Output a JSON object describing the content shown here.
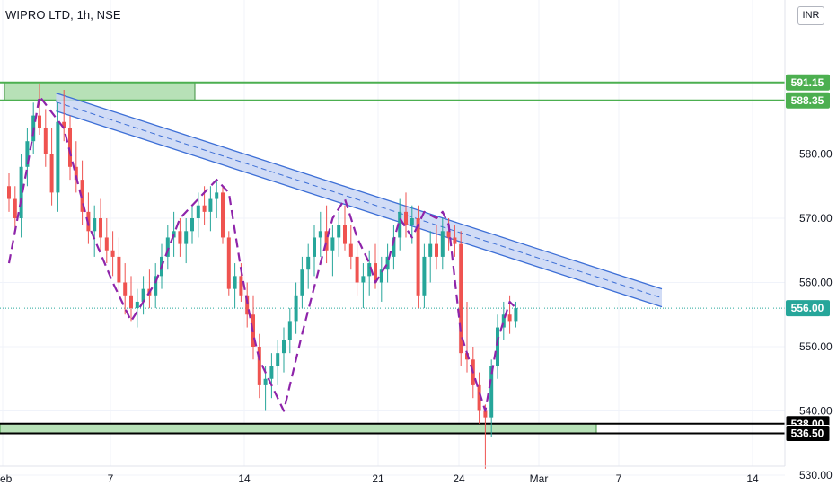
{
  "header": {
    "symbol_title": "WIPRO LTD, 1h, NSE",
    "currency": "INR"
  },
  "colors": {
    "up": "#26a69a",
    "down": "#ef5350",
    "zone_fill": "#b7e1b7",
    "zone_line": "#4caf50",
    "channel_fill": "#c9d6f5",
    "channel_line": "#3d6fd6",
    "path_line": "#8e24aa",
    "last_price": "#26a69a",
    "support_tag": "#000000"
  },
  "chart_data": {
    "type": "candlestick",
    "y_ticks": [
      530,
      540,
      550,
      560,
      570,
      580
    ],
    "ylim": [
      527,
      597
    ],
    "x_ticks": [
      "Feb",
      "7",
      "14",
      "21",
      "24",
      "Mar",
      "7",
      "14"
    ],
    "price_tags": [
      {
        "label": "591.15",
        "style": "resistance"
      },
      {
        "label": "588.35",
        "style": "resistance"
      },
      {
        "label": "556.00",
        "style": "last"
      },
      {
        "label": "538.00",
        "style": "support"
      },
      {
        "label": "536.50",
        "style": "support"
      }
    ],
    "zones": [
      {
        "name": "resistance",
        "high": 591.15,
        "low": 588.35
      },
      {
        "name": "support",
        "high": 538.0,
        "low": 536.5
      }
    ],
    "last_price": 556.0,
    "channel": {
      "from_bar": 8,
      "to_bar": 125,
      "from_high": 589.5,
      "to_high": 559.0,
      "width": 2.8
    },
    "candles": [
      [
        0,
        575,
        577,
        571,
        573
      ],
      [
        1,
        573,
        575,
        568,
        570
      ],
      [
        2,
        570,
        580,
        567,
        578
      ],
      [
        3,
        578,
        584,
        575,
        582
      ],
      [
        4,
        582,
        588,
        580,
        586
      ],
      [
        5,
        586,
        591,
        583,
        584
      ],
      [
        6,
        584,
        587,
        578,
        580
      ],
      [
        7,
        580,
        584,
        572,
        574
      ],
      [
        8,
        574,
        588,
        571,
        585
      ],
      [
        9,
        585,
        590,
        582,
        584
      ],
      [
        10,
        584,
        586,
        576,
        578
      ],
      [
        11,
        578,
        582,
        574,
        576
      ],
      [
        12,
        576,
        579,
        569,
        571
      ],
      [
        13,
        571,
        574,
        566,
        568
      ],
      [
        14,
        568,
        572,
        564,
        570
      ],
      [
        15,
        570,
        573,
        565,
        567
      ],
      [
        16,
        567,
        570,
        563,
        565
      ],
      [
        17,
        565,
        568,
        561,
        564
      ],
      [
        18,
        564,
        567,
        558,
        560
      ],
      [
        19,
        560,
        563,
        555,
        558
      ],
      [
        20,
        558,
        561,
        554,
        556
      ],
      [
        21,
        556,
        559,
        553,
        557
      ],
      [
        22,
        557,
        561,
        555,
        559
      ],
      [
        23,
        559,
        562,
        556,
        558
      ],
      [
        24,
        558,
        563,
        556,
        561
      ],
      [
        25,
        561,
        566,
        559,
        564
      ],
      [
        26,
        564,
        569,
        562,
        567
      ],
      [
        27,
        567,
        571,
        564,
        568
      ],
      [
        28,
        568,
        570,
        564,
        566
      ],
      [
        29,
        566,
        570,
        563,
        568
      ],
      [
        30,
        568,
        572,
        566,
        570
      ],
      [
        31,
        570,
        574,
        567,
        572
      ],
      [
        32,
        572,
        575,
        569,
        571
      ],
      [
        33,
        571,
        575,
        568,
        573
      ],
      [
        34,
        573,
        576,
        570,
        574
      ],
      [
        35,
        574,
        575,
        566,
        567
      ],
      [
        36,
        567,
        568,
        558,
        559
      ],
      [
        37,
        559,
        563,
        556,
        561
      ],
      [
        38,
        561,
        563,
        557,
        558
      ],
      [
        39,
        558,
        560,
        553,
        555
      ],
      [
        40,
        555,
        558,
        548,
        550
      ],
      [
        41,
        550,
        552,
        542,
        544
      ],
      [
        42,
        544,
        547,
        540,
        545
      ],
      [
        43,
        545,
        549,
        542,
        547
      ],
      [
        44,
        547,
        551,
        544,
        549
      ],
      [
        45,
        549,
        553,
        546,
        551
      ],
      [
        46,
        551,
        556,
        549,
        554
      ],
      [
        47,
        554,
        560,
        552,
        558
      ],
      [
        48,
        558,
        564,
        556,
        562
      ],
      [
        49,
        562,
        566,
        559,
        564
      ],
      [
        50,
        564,
        569,
        561,
        567
      ],
      [
        51,
        567,
        571,
        564,
        568
      ],
      [
        52,
        568,
        572,
        563,
        565
      ],
      [
        53,
        565,
        569,
        561,
        567
      ],
      [
        54,
        567,
        571,
        564,
        569
      ],
      [
        55,
        569,
        572,
        565,
        566
      ],
      [
        56,
        566,
        569,
        562,
        564
      ],
      [
        57,
        564,
        566,
        558,
        560
      ],
      [
        58,
        560,
        563,
        556,
        561
      ],
      [
        59,
        561,
        565,
        558,
        563
      ],
      [
        60,
        563,
        566,
        559,
        560
      ],
      [
        61,
        560,
        564,
        557,
        562
      ],
      [
        62,
        562,
        566,
        560,
        564
      ],
      [
        63,
        564,
        569,
        562,
        567
      ],
      [
        64,
        567,
        573,
        565,
        571
      ],
      [
        65,
        571,
        574,
        567,
        569
      ],
      [
        66,
        569,
        572,
        566,
        570
      ],
      [
        67,
        570,
        572,
        556,
        558
      ],
      [
        68,
        558,
        566,
        556,
        564
      ],
      [
        69,
        564,
        568,
        560,
        566
      ],
      [
        70,
        566,
        569,
        562,
        564
      ],
      [
        71,
        564,
        570,
        562,
        568
      ],
      [
        72,
        568,
        570,
        565,
        567
      ],
      [
        73,
        567,
        569,
        564,
        566
      ],
      [
        74,
        566,
        568,
        547,
        549
      ],
      [
        75,
        549,
        557,
        546,
        548
      ],
      [
        76,
        548,
        550,
        542,
        544
      ],
      [
        77,
        544,
        546,
        538,
        540
      ],
      [
        78,
        540,
        541,
        531,
        539
      ],
      [
        79,
        539,
        548,
        536,
        547
      ],
      [
        80,
        547,
        555,
        545,
        553
      ],
      [
        81,
        553,
        557,
        551,
        555
      ],
      [
        82,
        555,
        558,
        552,
        554
      ],
      [
        83,
        554,
        557,
        553,
        556
      ]
    ],
    "path": [
      [
        0,
        563
      ],
      [
        3,
        578
      ],
      [
        5,
        589
      ],
      [
        9,
        584
      ],
      [
        13,
        569
      ],
      [
        17,
        560
      ],
      [
        20,
        554
      ],
      [
        24,
        560
      ],
      [
        28,
        570
      ],
      [
        31,
        573
      ],
      [
        34,
        576
      ],
      [
        36,
        574
      ],
      [
        38,
        562
      ],
      [
        40,
        552
      ],
      [
        41,
        548
      ],
      [
        45,
        540
      ],
      [
        48,
        552
      ],
      [
        51,
        563
      ],
      [
        53,
        570
      ],
      [
        55,
        573
      ],
      [
        57,
        567
      ],
      [
        59,
        563
      ],
      [
        60,
        560
      ],
      [
        62,
        563
      ],
      [
        64,
        570
      ],
      [
        66,
        567
      ],
      [
        68,
        571
      ],
      [
        70,
        570
      ],
      [
        71,
        571
      ],
      [
        72,
        569
      ],
      [
        74,
        552
      ],
      [
        76,
        546
      ],
      [
        78,
        540
      ],
      [
        80,
        551
      ],
      [
        82,
        557
      ],
      [
        83,
        556
      ]
    ]
  }
}
